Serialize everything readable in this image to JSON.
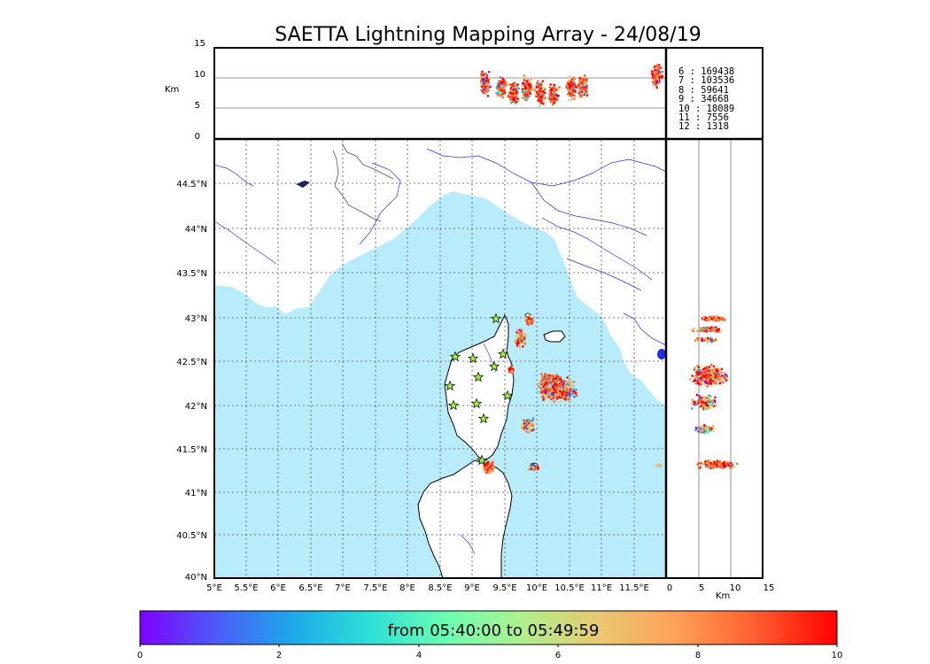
{
  "title": "SAETTA Lightning Mapping Array - 24/08/19",
  "top_panel": {
    "ylabel": "Km",
    "yticks": [
      "15",
      "10",
      "5",
      "0"
    ],
    "gridlines_km": [
      5,
      10
    ]
  },
  "right_panel": {
    "xlabel": "Km",
    "xticks": [
      "0",
      "5",
      "10",
      "15"
    ],
    "gridlines_km": [
      5,
      10
    ]
  },
  "map": {
    "lat_labels": [
      "44.5°N",
      "44°N",
      "43.5°N",
      "43°N",
      "42.5°N",
      "42°N",
      "41.5°N",
      "41°N",
      "40.5°N",
      "40°N"
    ],
    "lon_labels": [
      "5°E",
      "5.5°E",
      "6°E",
      "6.5°E",
      "7°E",
      "7.5°E",
      "8°E",
      "8.5°E",
      "9°E",
      "9.5°E",
      "10°E",
      "10.5°E",
      "11°E",
      "11.5°E"
    ],
    "sea_color": "#b8ecfb",
    "station_color": "#9cf03c"
  },
  "legend": [
    {
      "label": " 6 :  169438",
      "color": "#000000"
    },
    {
      "label": " 7 :  103536",
      "color": "#ff0000"
    },
    {
      "label": " 8 :   59641",
      "color": "#000000"
    },
    {
      "label": " 9 :   34668",
      "color": "#000000"
    },
    {
      "label": "10 :   18089",
      "color": "#000000"
    },
    {
      "label": "11 :    7556",
      "color": "#000000"
    },
    {
      "label": "12 :    1318",
      "color": "#000000"
    }
  ],
  "colorbar": {
    "caption": "from 05:40:00 to 05:49:59",
    "ticks": [
      "0",
      "2",
      "4",
      "6",
      "8",
      "10"
    ],
    "colors": [
      "#7f00ff",
      "#4a5cf8",
      "#1ea9e9",
      "#2de0d6",
      "#6cfdb4",
      "#b0f08c",
      "#e8c870",
      "#ffa05a",
      "#ff6030",
      "#ff0000"
    ]
  }
}
